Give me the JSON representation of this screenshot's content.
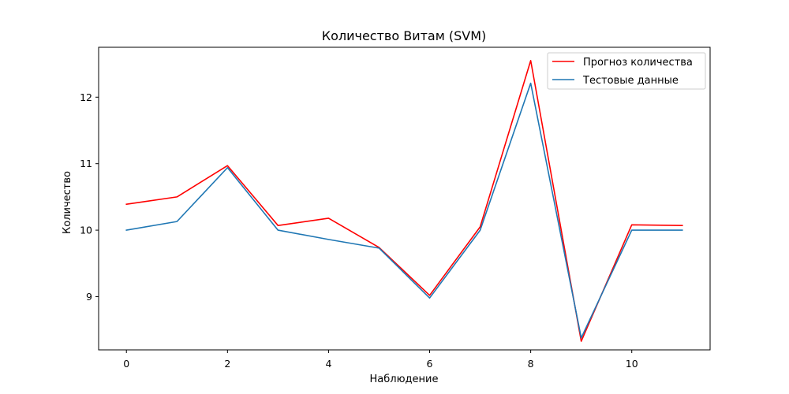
{
  "chart_data": {
    "type": "line",
    "title": "Количество Витам  (SVM)",
    "xlabel": "Наблюдение",
    "ylabel": "Количество",
    "x": [
      0,
      1,
      2,
      3,
      4,
      5,
      6,
      7,
      8,
      9,
      10,
      11
    ],
    "xlim": [
      -0.55,
      11.55
    ],
    "ylim": [
      8.2,
      12.75
    ],
    "xticks": [
      0,
      2,
      4,
      6,
      8,
      10
    ],
    "yticks": [
      9,
      10,
      11,
      12
    ],
    "legend_position": "top-right",
    "grid": false,
    "series": [
      {
        "name": "Прогноз количества",
        "color": "#ff0000",
        "values": [
          10.39,
          10.5,
          10.97,
          10.07,
          10.18,
          9.74,
          9.02,
          10.05,
          12.55,
          8.33,
          10.08,
          10.07
        ]
      },
      {
        "name": "Тестовые данные",
        "color": "#1f77b4",
        "values": [
          10.0,
          10.13,
          10.94,
          10.0,
          9.86,
          9.73,
          8.98,
          10.0,
          12.21,
          8.38,
          10.0,
          10.0
        ]
      }
    ]
  }
}
